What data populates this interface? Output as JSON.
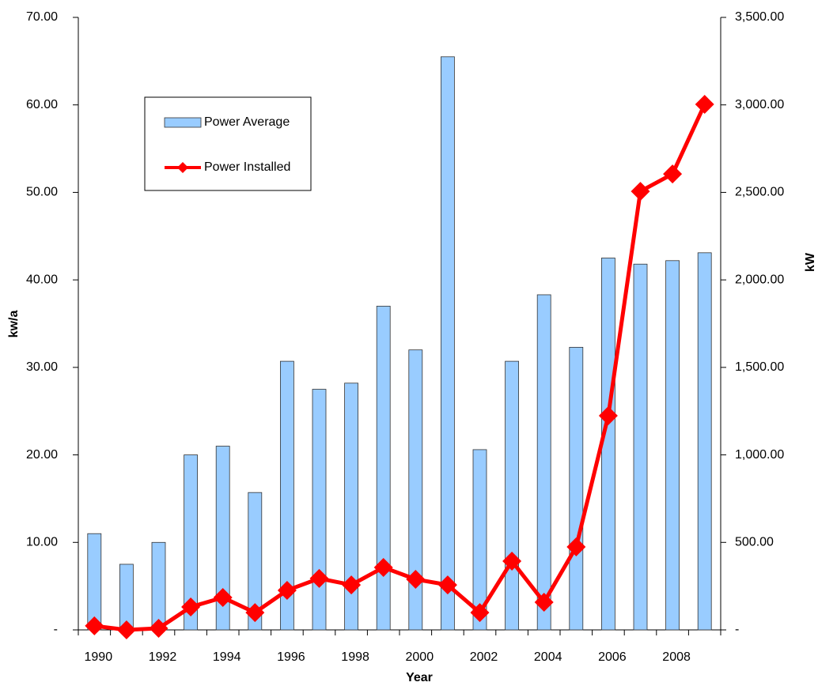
{
  "chart_data": {
    "type": "bar_line",
    "xlabel": "Year",
    "ylabel": "kw/a",
    "y2label": "kW",
    "categories": [
      "1990",
      null,
      "1992",
      null,
      "1994",
      null,
      "1996",
      null,
      "1998",
      null,
      "2000",
      null,
      "2002",
      null,
      "2004",
      null,
      "2006",
      null,
      "2008",
      null
    ],
    "series": [
      {
        "name": "Power Average",
        "type": "bar",
        "color": "#99ccff",
        "values": [
          11.0,
          7.5,
          10.0,
          20.0,
          21.0,
          15.7,
          30.7,
          27.5,
          28.2,
          37.0,
          32.0,
          65.5,
          20.6,
          30.7,
          38.3,
          32.3,
          42.5,
          41.8,
          42.2,
          43.1
        ]
      },
      {
        "name": "Power Installed",
        "type": "line",
        "axis": "y2",
        "color": "#ff0000",
        "values": [
          23,
          0,
          9,
          131,
          185,
          99,
          226,
          294,
          257,
          357,
          289,
          257,
          99,
          393,
          158,
          474,
          1224,
          2506,
          2605,
          3003
        ]
      }
    ],
    "ylim": [
      0,
      70
    ],
    "yticks": [
      {
        "value": 0,
        "label": "-"
      },
      {
        "value": 10,
        "label": "10.00"
      },
      {
        "value": 20,
        "label": "20.00"
      },
      {
        "value": 30,
        "label": "30.00"
      },
      {
        "value": 40,
        "label": "40.00"
      },
      {
        "value": 50,
        "label": "50.00"
      },
      {
        "value": 60,
        "label": "60.00"
      },
      {
        "value": 70,
        "label": "70.00"
      }
    ],
    "y2lim": [
      0,
      3500
    ],
    "y2ticks": [
      {
        "value": 0,
        "label": "-"
      },
      {
        "value": 500,
        "label": "500.00"
      },
      {
        "value": 1000,
        "label": "1,000.00"
      },
      {
        "value": 1500,
        "label": "1,500.00"
      },
      {
        "value": 2000,
        "label": "2,000.00"
      },
      {
        "value": 2500,
        "label": "2,500.00"
      },
      {
        "value": 3000,
        "label": "3,000.00"
      },
      {
        "value": 3500,
        "label": "3,500.00"
      }
    ],
    "grid": false,
    "legend": "upper left"
  }
}
